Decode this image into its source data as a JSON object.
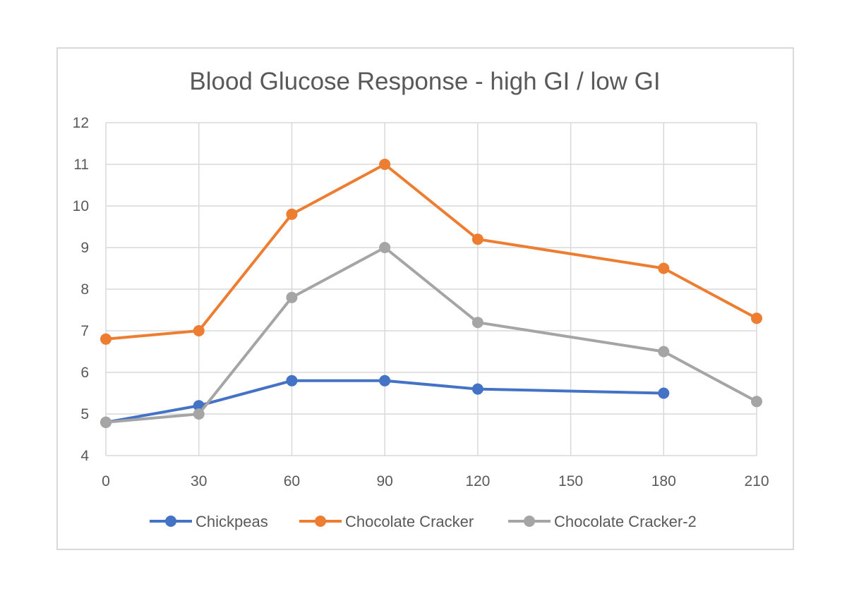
{
  "chart_data": {
    "type": "line",
    "title": "Blood Glucose Response - high GI / low GI",
    "xlabel": "",
    "ylabel": "",
    "x": [
      0,
      30,
      60,
      90,
      120,
      150,
      180,
      210
    ],
    "xlim": [
      0,
      210
    ],
    "ylim": [
      4,
      12
    ],
    "x_ticks": [
      "0",
      "30",
      "60",
      "90",
      "120",
      "150",
      "180",
      "210"
    ],
    "y_ticks": [
      "4",
      "5",
      "6",
      "7",
      "8",
      "9",
      "10",
      "11",
      "12"
    ],
    "grid": true,
    "legend_position": "bottom",
    "series": [
      {
        "name": "Chickpeas",
        "color": "#4472c4",
        "points": [
          [
            0,
            4.8
          ],
          [
            30,
            5.2
          ],
          [
            60,
            5.8
          ],
          [
            90,
            5.8
          ],
          [
            120,
            5.6
          ],
          [
            180,
            5.5
          ]
        ]
      },
      {
        "name": "Chocolate Cracker",
        "color": "#ed7d31",
        "points": [
          [
            0,
            6.8
          ],
          [
            30,
            7.0
          ],
          [
            60,
            9.8
          ],
          [
            90,
            11.0
          ],
          [
            120,
            9.2
          ],
          [
            180,
            8.5
          ],
          [
            210,
            7.3
          ]
        ]
      },
      {
        "name": "Chocolate Cracker-2",
        "color": "#a5a5a5",
        "points": [
          [
            0,
            4.8
          ],
          [
            30,
            5.0
          ],
          [
            60,
            7.8
          ],
          [
            90,
            9.0
          ],
          [
            120,
            7.2
          ],
          [
            180,
            6.5
          ],
          [
            210,
            5.3
          ]
        ]
      }
    ]
  }
}
